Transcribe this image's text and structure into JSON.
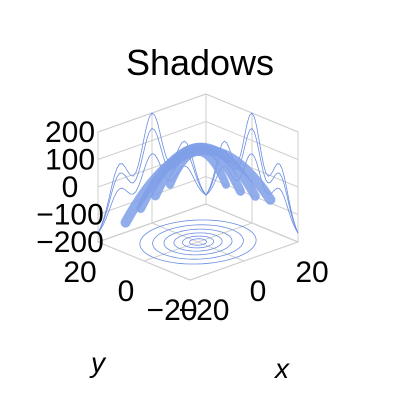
{
  "chart_data": {
    "type": "surface3d",
    "title": "Shadows",
    "xlabel": "x",
    "ylabel": "y",
    "zlabel": "",
    "xlim": [
      -20,
      20
    ],
    "ylim": [
      -20,
      20
    ],
    "zlim": [
      -200,
      200
    ],
    "x_ticks": [
      -20,
      0,
      20
    ],
    "x_tick_labels": [
      "−20",
      "0",
      "20"
    ],
    "y_ticks": [
      -20,
      0,
      20
    ],
    "y_tick_labels": [
      "−20",
      "0",
      "20"
    ],
    "z_ticks": [
      -200,
      -100,
      0,
      100,
      200
    ],
    "z_tick_labels": [
      "−200",
      "−100",
      "0",
      "100",
      "200"
    ],
    "surface": "wavy dome (z rises toward the center), drawn with its contour shadows projected onto the back walls and the floor",
    "grid": true,
    "colors": {
      "surface": "#7f9fe8",
      "contour": "#6b8ee2",
      "pane_line": "#cfcfcf"
    }
  }
}
